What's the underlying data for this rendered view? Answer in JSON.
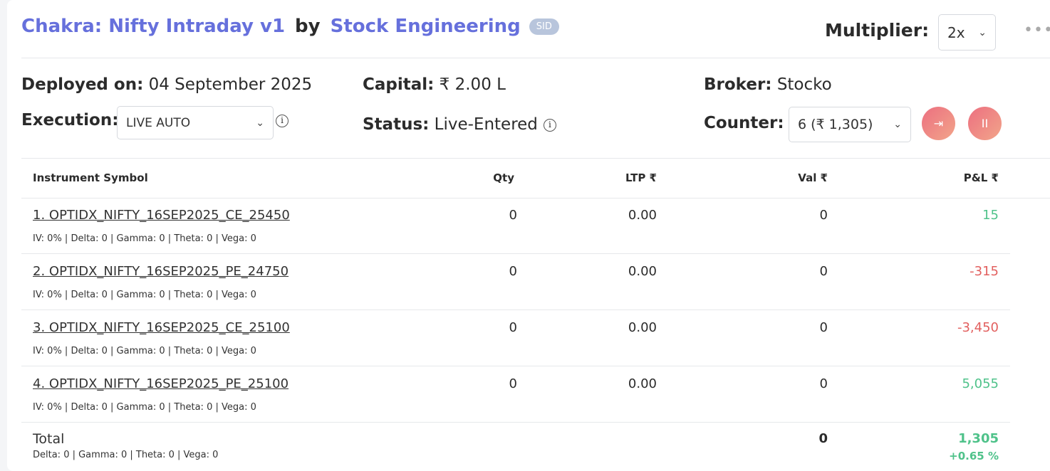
{
  "header": {
    "strategy": "Chakra: Nifty Intraday v1",
    "by": "by",
    "author": "Stock Engineering",
    "badge": "SID",
    "multiplier_label": "Multiplier:",
    "multiplier_value": "2x",
    "more_icon": "ellipsis-icon"
  },
  "info": {
    "deployed_label": "Deployed on:",
    "deployed_value": "04 September 2025",
    "capital_label": "Capital:",
    "capital_value": "₹ 2.00 L",
    "broker_label": "Broker:",
    "broker_value": "Stocko",
    "execution_label": "Execution:",
    "execution_value": "LIVE AUTO",
    "status_label": "Status:",
    "status_value": "Live-Entered",
    "counter_label": "Counter:",
    "counter_value": "6 (₹ 1,305)"
  },
  "colors": {
    "accent": "#6670dc",
    "positive": "#4fc28a",
    "negative": "#e2605f"
  },
  "table": {
    "headers": [
      "Instrument Symbol",
      "Qty",
      "LTP ₹",
      "Val ₹",
      "P&L ₹"
    ],
    "rows": [
      {
        "symbol": "1. OPTIDX_NIFTY_16SEP2025_CE_25450",
        "greeks": "IV: 0% | Delta: 0 | Gamma: 0 | Theta: 0 | Vega: 0",
        "qty": "0",
        "ltp": "0.00",
        "val": "0",
        "pnl": "15",
        "sign": "pos"
      },
      {
        "symbol": "2. OPTIDX_NIFTY_16SEP2025_PE_24750",
        "greeks": "IV: 0% | Delta: 0 | Gamma: 0 | Theta: 0 | Vega: 0",
        "qty": "0",
        "ltp": "0.00",
        "val": "0",
        "pnl": "-315",
        "sign": "neg"
      },
      {
        "symbol": "3. OPTIDX_NIFTY_16SEP2025_CE_25100",
        "greeks": "IV: 0% | Delta: 0 | Gamma: 0 | Theta: 0 | Vega: 0",
        "qty": "0",
        "ltp": "0.00",
        "val": "0",
        "pnl": "-3,450",
        "sign": "neg"
      },
      {
        "symbol": "4. OPTIDX_NIFTY_16SEP2025_PE_25100",
        "greeks": "IV: 0% | Delta: 0 | Gamma: 0 | Theta: 0 | Vega: 0",
        "qty": "0",
        "ltp": "0.00",
        "val": "0",
        "pnl": "5,055",
        "sign": "pos"
      }
    ],
    "total": {
      "label": "Total",
      "greeks": "Delta: 0 | Gamma: 0  | Theta: 0 | Vega: 0",
      "val": "0",
      "pnl": "1,305",
      "pnl_pct": "+0.65 %"
    }
  }
}
